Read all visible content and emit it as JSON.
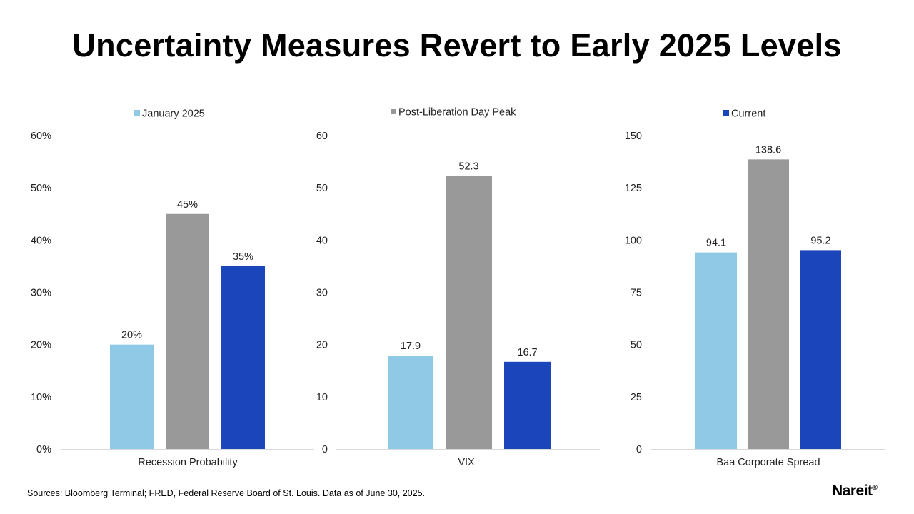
{
  "title": "Uncertainty Measures Revert to Early 2025 Levels",
  "source": "Sources: Bloomberg Terminal; FRED, Federal Reserve Board of St. Louis. Data as of June 30, 2025.",
  "logo": {
    "text": "Nareit",
    "mark": "®"
  },
  "colors": {
    "january": "#8ecae6",
    "peak": "#999999",
    "current": "#1b46bb",
    "axis": "#d9d9d9"
  },
  "chart_data": [
    {
      "type": "bar",
      "category": "Recession Probability",
      "legend": "January 2025",
      "legend_color": "january",
      "ylim": [
        0,
        60
      ],
      "ticks": [
        "0%",
        "10%",
        "20%",
        "30%",
        "40%",
        "50%",
        "60%"
      ],
      "tick_values": [
        0,
        10,
        20,
        30,
        40,
        50,
        60
      ],
      "series": [
        {
          "name": "January 2025",
          "value": 20,
          "label": "20%",
          "color": "january"
        },
        {
          "name": "Post-Liberation Day Peak",
          "value": 45,
          "label": "45%",
          "color": "peak"
        },
        {
          "name": "Current",
          "value": 35,
          "label": "35%",
          "color": "current"
        }
      ]
    },
    {
      "type": "bar",
      "category": "VIX",
      "legend": "Post-Liberation Day Peak",
      "legend_color": "peak",
      "ylim": [
        0,
        60
      ],
      "ticks": [
        "0",
        "10",
        "20",
        "30",
        "40",
        "50",
        "60"
      ],
      "tick_values": [
        0,
        10,
        20,
        30,
        40,
        50,
        60
      ],
      "series": [
        {
          "name": "January 2025",
          "value": 17.9,
          "label": "17.9",
          "color": "january"
        },
        {
          "name": "Post-Liberation Day Peak",
          "value": 52.3,
          "label": "52.3",
          "color": "peak"
        },
        {
          "name": "Current",
          "value": 16.7,
          "label": "16.7",
          "color": "current"
        }
      ]
    },
    {
      "type": "bar",
      "category": "Baa Corporate Spread",
      "legend": "Current",
      "legend_color": "current",
      "ylim": [
        0,
        150
      ],
      "ticks": [
        "0",
        "25",
        "50",
        "75",
        "100",
        "125",
        "150"
      ],
      "tick_values": [
        0,
        25,
        50,
        75,
        100,
        125,
        150
      ],
      "series": [
        {
          "name": "January 2025",
          "value": 94.1,
          "label": "94.1",
          "color": "january"
        },
        {
          "name": "Post-Liberation Day Peak",
          "value": 138.6,
          "label": "138.6",
          "color": "peak"
        },
        {
          "name": "Current",
          "value": 95.2,
          "label": "95.2",
          "color": "current"
        }
      ]
    }
  ]
}
